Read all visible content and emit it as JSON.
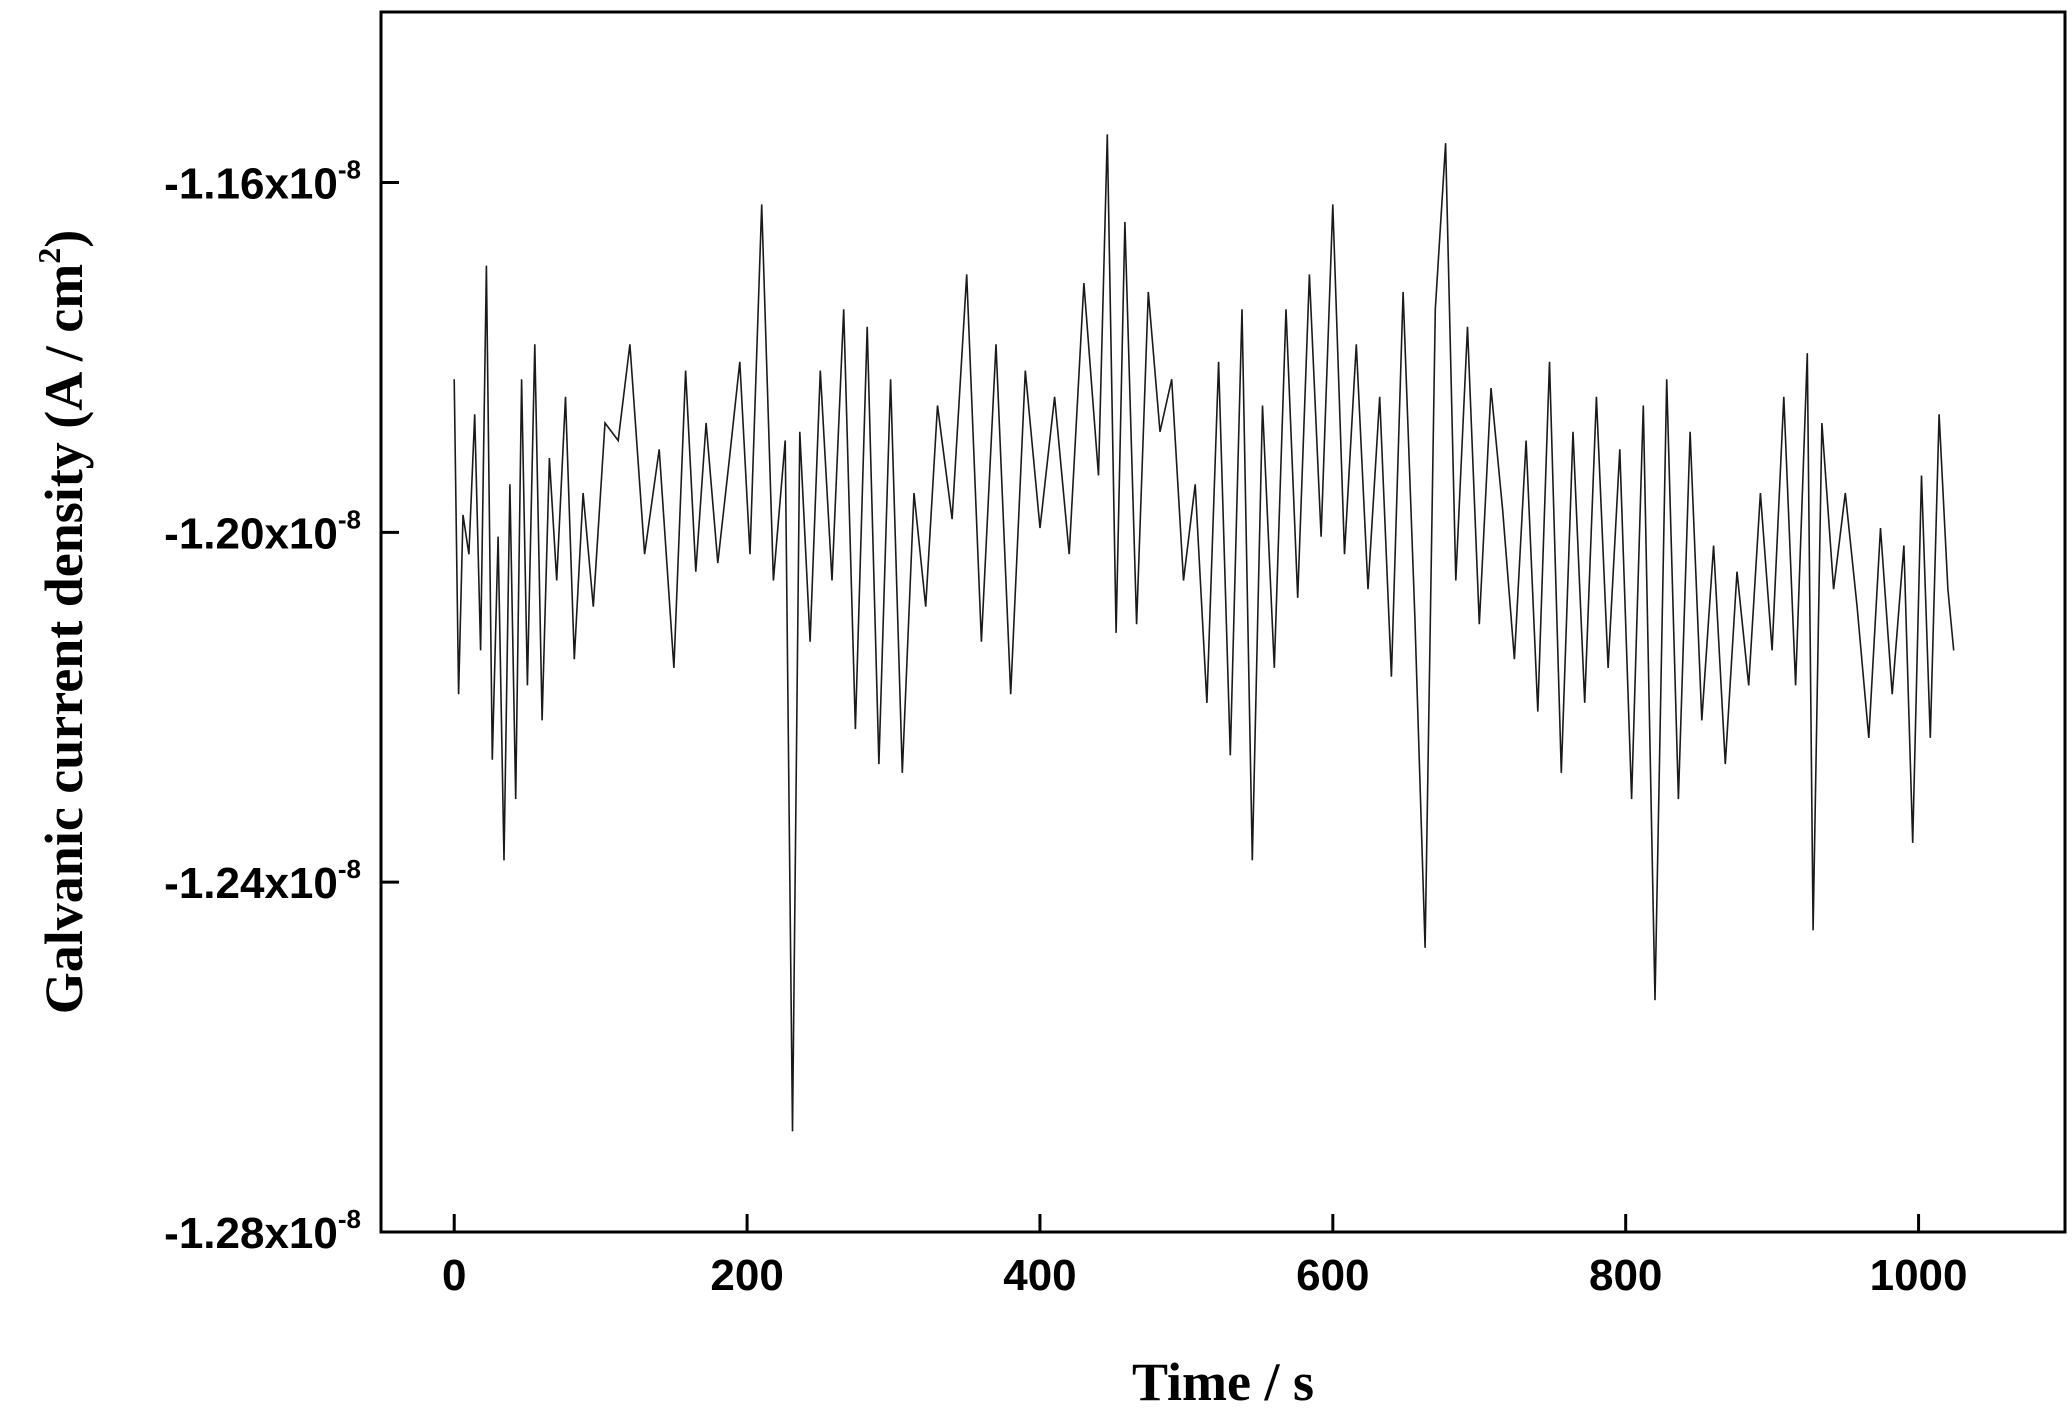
{
  "chart_data": {
    "type": "line",
    "title": "",
    "xlabel": "Time / s",
    "ylabel": {
      "main": "Galvanic current density (A / cm",
      "sup": "2",
      "tail": ")"
    },
    "xlim": [
      -50,
      1100
    ],
    "ylim": [
      -1.28e-08,
      -1.1405e-08
    ],
    "x_ticks": [
      {
        "value": 0,
        "label": "0"
      },
      {
        "value": 200,
        "label": "200"
      },
      {
        "value": 400,
        "label": "400"
      },
      {
        "value": 600,
        "label": "600"
      },
      {
        "value": 800,
        "label": "800"
      },
      {
        "value": 1000,
        "label": "1000"
      }
    ],
    "y_ticks": [
      {
        "value": -1.16e-08,
        "label": "-1.16x10",
        "exp": "-8"
      },
      {
        "value": -1.2e-08,
        "label": "-1.20x10",
        "exp": "-8"
      },
      {
        "value": -1.24e-08,
        "label": "-1.24x10",
        "exp": "-8"
      },
      {
        "value": -1.28e-08,
        "label": "-1.28x10",
        "exp": "-8"
      }
    ],
    "grid": false,
    "line_color": "#1a1a1a",
    "series": [
      {
        "x": [
          0,
          3,
          6,
          10,
          14,
          18,
          22,
          26,
          30,
          34,
          38,
          42,
          46,
          50,
          55,
          60,
          65,
          70,
          76,
          82,
          88,
          95,
          103,
          112,
          120,
          130,
          140,
          150,
          158,
          165,
          172,
          180,
          188,
          195,
          202,
          210,
          218,
          226,
          231,
          236,
          243,
          250,
          258,
          266,
          274,
          282,
          290,
          298,
          306,
          314,
          322,
          330,
          340,
          350,
          360,
          370,
          380,
          390,
          400,
          410,
          420,
          430,
          440,
          446,
          452,
          458,
          466,
          474,
          482,
          490,
          498,
          506,
          514,
          522,
          530,
          538,
          545,
          552,
          560,
          568,
          576,
          584,
          592,
          600,
          608,
          616,
          624,
          632,
          640,
          648,
          656,
          663,
          670,
          677,
          684,
          692,
          700,
          708,
          716,
          724,
          732,
          740,
          748,
          756,
          764,
          772,
          780,
          788,
          796,
          804,
          812,
          820,
          828,
          836,
          844,
          852,
          860,
          868,
          876,
          884,
          892,
          900,
          908,
          916,
          924,
          928,
          934,
          942,
          950,
          958,
          966,
          974,
          982,
          990,
          996,
          1002,
          1008,
          1014,
          1020,
          1024
        ],
        "values": [
          -1.1825e-08,
          -1.2185e-08,
          -1.198e-08,
          -1.2025e-08,
          -1.1865e-08,
          -1.2135e-08,
          -1.1695e-08,
          -1.226e-08,
          -1.2005e-08,
          -1.2375e-08,
          -1.1945e-08,
          -1.2305e-08,
          -1.1825e-08,
          -1.2175e-08,
          -1.1785e-08,
          -1.2215e-08,
          -1.1915e-08,
          -1.2055e-08,
          -1.1845e-08,
          -1.2145e-08,
          -1.1955e-08,
          -1.2085e-08,
          -1.1875e-08,
          -1.1895e-08,
          -1.1785e-08,
          -1.2025e-08,
          -1.1905e-08,
          -1.2155e-08,
          -1.1815e-08,
          -1.2045e-08,
          -1.1875e-08,
          -1.2035e-08,
          -1.1915e-08,
          -1.1805e-08,
          -1.2025e-08,
          -1.1625e-08,
          -1.2055e-08,
          -1.1895e-08,
          -1.2685e-08,
          -1.1885e-08,
          -1.2125e-08,
          -1.1815e-08,
          -1.2055e-08,
          -1.1745e-08,
          -1.2225e-08,
          -1.1765e-08,
          -1.2265e-08,
          -1.1825e-08,
          -1.2275e-08,
          -1.1955e-08,
          -1.2085e-08,
          -1.1855e-08,
          -1.1985e-08,
          -1.1705e-08,
          -1.2125e-08,
          -1.1785e-08,
          -1.2185e-08,
          -1.1815e-08,
          -1.1995e-08,
          -1.1845e-08,
          -1.2025e-08,
          -1.1715e-08,
          -1.1935e-08,
          -1.1545e-08,
          -1.2115e-08,
          -1.1645e-08,
          -1.2105e-08,
          -1.1725e-08,
          -1.1885e-08,
          -1.1825e-08,
          -1.2055e-08,
          -1.1945e-08,
          -1.2195e-08,
          -1.1805e-08,
          -1.2255e-08,
          -1.1745e-08,
          -1.2375e-08,
          -1.1855e-08,
          -1.2155e-08,
          -1.1745e-08,
          -1.2075e-08,
          -1.1705e-08,
          -1.2005e-08,
          -1.1625e-08,
          -1.2025e-08,
          -1.1785e-08,
          -1.2065e-08,
          -1.1845e-08,
          -1.2165e-08,
          -1.1725e-08,
          -1.2095e-08,
          -1.2475e-08,
          -1.1745e-08,
          -1.1555e-08,
          -1.2055e-08,
          -1.1765e-08,
          -1.2105e-08,
          -1.1835e-08,
          -1.1975e-08,
          -1.2145e-08,
          -1.1895e-08,
          -1.2205e-08,
          -1.1805e-08,
          -1.2275e-08,
          -1.1885e-08,
          -1.2195e-08,
          -1.1845e-08,
          -1.2155e-08,
          -1.1905e-08,
          -1.2305e-08,
          -1.1855e-08,
          -1.2535e-08,
          -1.1825e-08,
          -1.2305e-08,
          -1.1885e-08,
          -1.2215e-08,
          -1.2015e-08,
          -1.2265e-08,
          -1.2045e-08,
          -1.2175e-08,
          -1.1955e-08,
          -1.2135e-08,
          -1.1845e-08,
          -1.2175e-08,
          -1.1795e-08,
          -1.2455e-08,
          -1.1875e-08,
          -1.2065e-08,
          -1.1955e-08,
          -1.2085e-08,
          -1.2235e-08,
          -1.1995e-08,
          -1.2185e-08,
          -1.2015e-08,
          -1.2355e-08,
          -1.1935e-08,
          -1.2235e-08,
          -1.1865e-08,
          -1.2065e-08,
          -1.2135e-08
        ]
      }
    ]
  }
}
